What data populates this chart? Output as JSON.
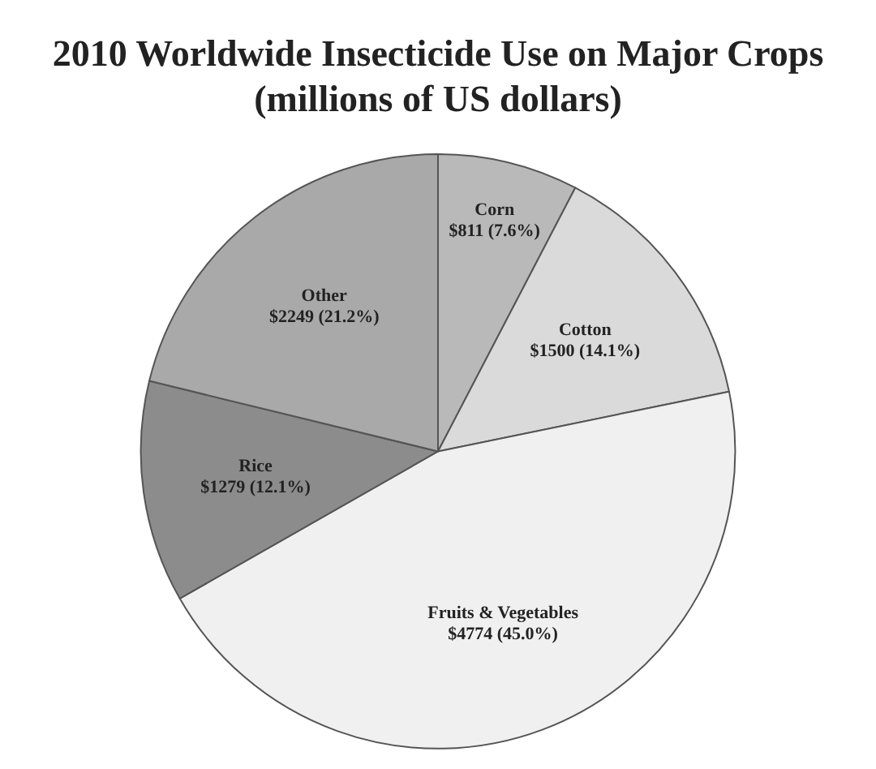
{
  "chart_data": {
    "type": "pie",
    "title": "2010 Worldwide Insecticide Use on Major Crops\n(millions of US dollars)",
    "categories": [
      "Corn",
      "Cotton",
      "Fruits & Vegetables",
      "Rice",
      "Other"
    ],
    "values": [
      811,
      1500,
      4774,
      1279,
      2249
    ],
    "value_labels": [
      "$811 (7.6%)",
      "$1500 (14.1%)",
      "$4774 (45.0%)",
      "$1279 (12.1%)",
      "$2249 (21.2%)"
    ],
    "colors": [
      "#b9b9b9",
      "#dadada",
      "#f0f0f0",
      "#8c8c8c",
      "#a9a9a9"
    ],
    "legend": false
  }
}
